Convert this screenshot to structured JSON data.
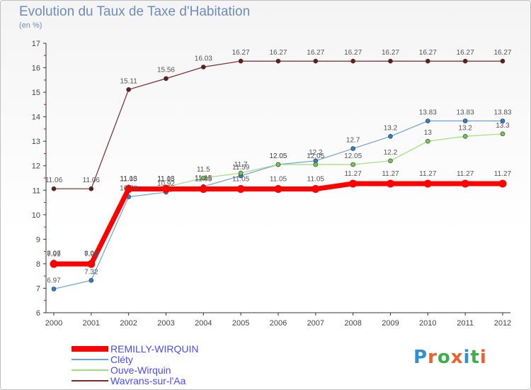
{
  "header": {
    "title": "Evolution du Taux de Taxe d'Habitation",
    "unit": "(en %)"
  },
  "logo": {
    "text": "Proxiti",
    "letter_colors": [
      "#2f8fd6",
      "#e8622c",
      "#3fae49",
      "#e8622c",
      "#2f8fd6",
      "#3fae49",
      "#e8622c"
    ]
  },
  "chart_data": {
    "type": "line",
    "x": [
      "2000",
      "2001",
      "2002",
      "2003",
      "2004",
      "2005",
      "2006",
      "2007",
      "2008",
      "2009",
      "2010",
      "2011",
      "2012"
    ],
    "ylim": [
      6,
      17
    ],
    "yticks": [
      "6",
      "7",
      "8",
      "9",
      "10",
      "11",
      "12",
      "13",
      "14",
      "15",
      "16",
      "17"
    ],
    "grid": false,
    "legend_position": "bottom-left",
    "series": [
      {
        "name": "Wavrans-sur-l'Aa",
        "color": "#7a2a2a",
        "marker_color": "#6b1a1a",
        "values": [
          11.06,
          11.06,
          15.11,
          15.56,
          16.03,
          16.27,
          16.27,
          16.27,
          16.27,
          16.27,
          16.27,
          16.27,
          16.27
        ],
        "labels": [
          "11.06",
          "11.06",
          "15.11",
          "15.56",
          "16.03",
          "16.27",
          "16.27",
          "16.27",
          "16.27",
          "16.27",
          "16.27",
          "16.27",
          "16.27"
        ]
      },
      {
        "name": "Cléty",
        "color": "#6aa3d8",
        "marker_color": "#2f7fc5",
        "values": [
          6.97,
          7.32,
          10.73,
          10.92,
          11.15,
          11.59,
          12.05,
          12.2,
          12.7,
          13.2,
          13.83,
          13.83,
          13.83
        ],
        "labels": [
          "6.97",
          "7.32",
          "10.73",
          "10.92",
          "11.15",
          "11.59",
          "12.05",
          "12.2",
          "12.7",
          "13.2",
          "13.83",
          "13.83",
          "13.83"
        ]
      },
      {
        "name": "Ouve-Wirquin",
        "color": "#9ee07a",
        "marker_color": "#6fc94a",
        "values": [
          8.07,
          8.07,
          11.13,
          11.13,
          11.5,
          11.7,
          12.05,
          12.05,
          12.05,
          12.2,
          13.0,
          13.2,
          13.3
        ],
        "labels": [
          "8.07",
          "8.07",
          "11.13",
          "11.13",
          "11.5",
          "11.7",
          "12.05",
          "12.05",
          "12.05",
          "12.2",
          "13",
          "13.2",
          "13.3"
        ]
      },
      {
        "name": "REMILLY-WIRQUIN",
        "color": "#ff0000",
        "marker_color": "#ff0000",
        "values": [
          7.99,
          7.99,
          11.05,
          11.05,
          11.05,
          11.05,
          11.05,
          11.05,
          11.27,
          11.27,
          11.27,
          11.27,
          11.27
        ],
        "labels": [
          "7.99",
          "7.99",
          "11.05",
          "11.05",
          "11.05",
          "11.05",
          "11.05",
          "11.05",
          "11.27",
          "11.27",
          "11.27",
          "11.27",
          "11.27"
        ]
      }
    ]
  },
  "legend": {
    "items": [
      {
        "name": "REMILLY-WIRQUIN",
        "color": "#ff0000",
        "text_color": "#4a4aff"
      },
      {
        "name": "Cléty",
        "color": "#6aa3d8",
        "text_color": "#4a4aff"
      },
      {
        "name": "Ouve-Wirquin",
        "color": "#9ee07a",
        "text_color": "#4a4aff"
      },
      {
        "name": "Wavrans-sur-l'Aa",
        "color": "#7a2a2a",
        "text_color": "#4a4aff"
      }
    ]
  }
}
